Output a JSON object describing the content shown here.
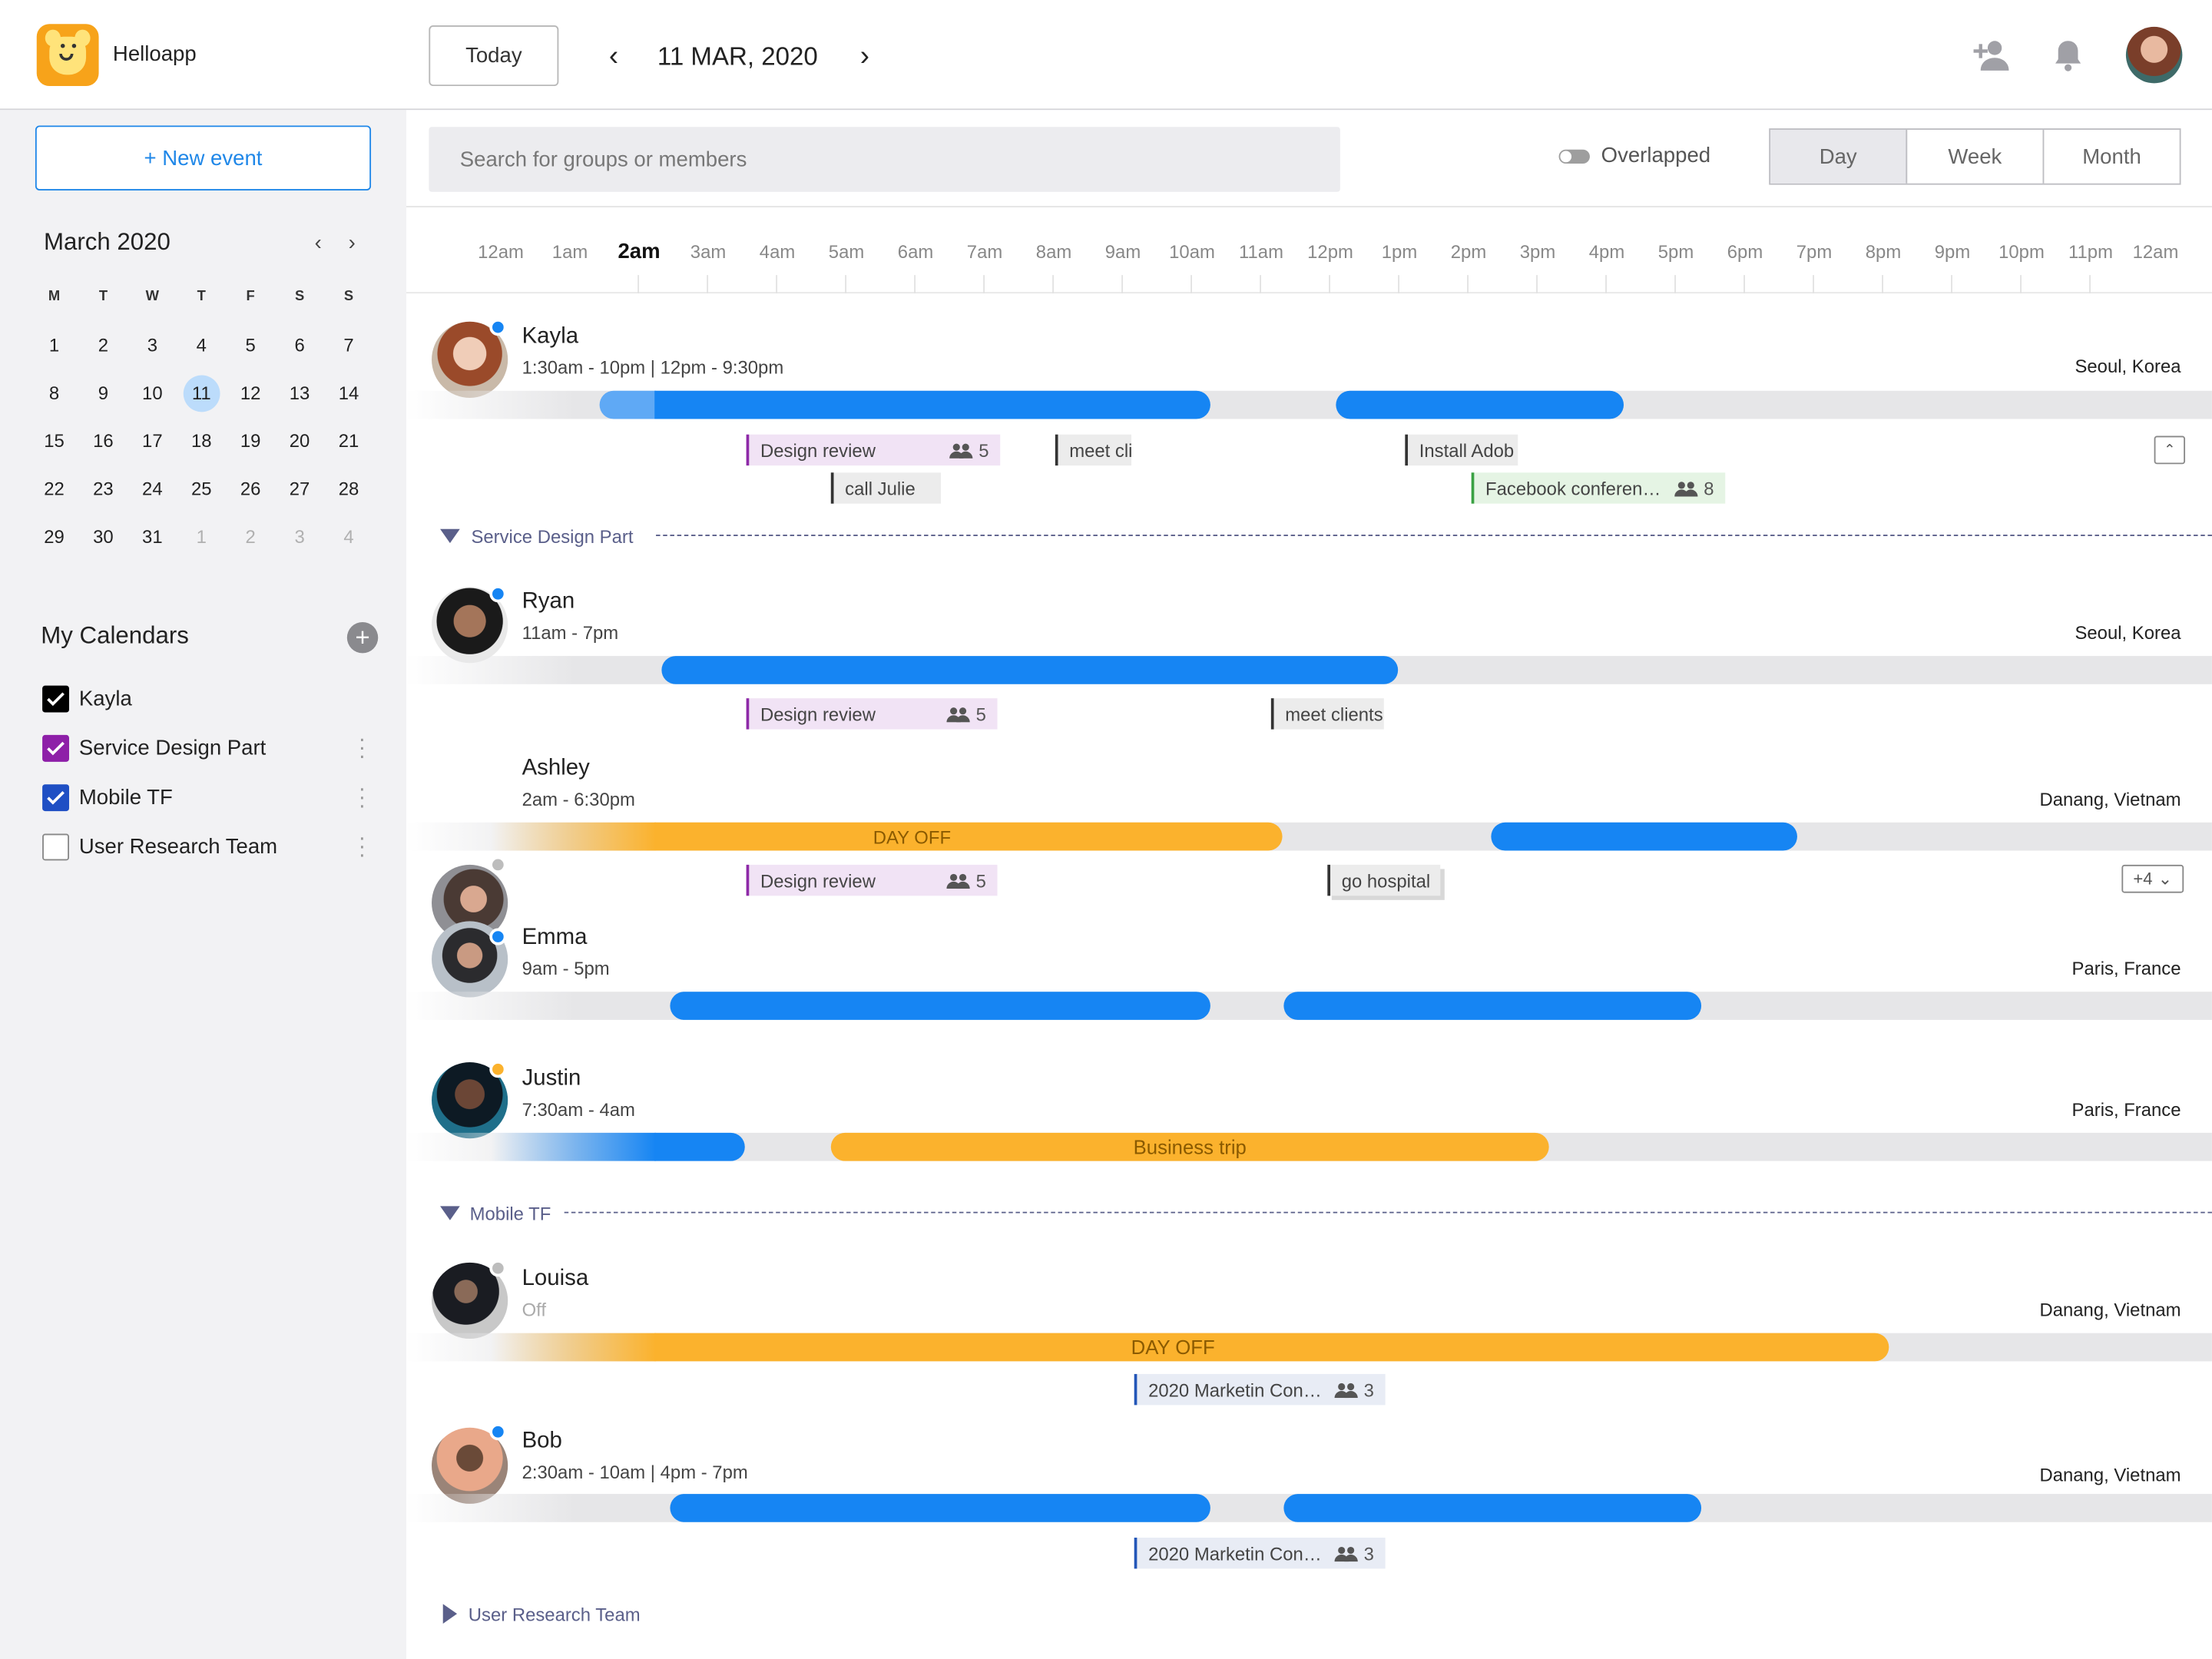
{
  "app": {
    "name": "Helloapp"
  },
  "toolbar": {
    "today_label": "Today",
    "date": "11 MAR, 2020",
    "prev": "‹",
    "next": "›"
  },
  "sidebar": {
    "new_event_label": "+ New event",
    "month_title": "March 2020",
    "weekdays": [
      "M",
      "T",
      "W",
      "T",
      "F",
      "S",
      "S"
    ],
    "weeks": [
      [
        "1",
        "2",
        "3",
        "4",
        "5",
        "6",
        "7"
      ],
      [
        "8",
        "9",
        "10",
        "11",
        "12",
        "13",
        "14"
      ],
      [
        "15",
        "16",
        "17",
        "18",
        "19",
        "20",
        "21"
      ],
      [
        "22",
        "23",
        "24",
        "25",
        "26",
        "27",
        "28"
      ],
      [
        "29",
        "30",
        "31",
        "1",
        "2",
        "3",
        "4"
      ]
    ],
    "selected_day": "11",
    "my_calendars_title": "My Calendars",
    "calendars": [
      {
        "label": "Kayla",
        "color": "#000000",
        "checked": true
      },
      {
        "label": "Service Design Part",
        "color": "#8e1fa8",
        "checked": true
      },
      {
        "label": "Mobile TF",
        "color": "#1f4fc4",
        "checked": true
      },
      {
        "label": "User Research Team",
        "color": "#888888",
        "checked": false
      }
    ]
  },
  "main": {
    "search_placeholder": "Search for groups or members",
    "overlapped_label": "Overlapped",
    "views": [
      "Day",
      "Week",
      "Month"
    ],
    "active_view": "Day",
    "hours": [
      "12am",
      "1am",
      "2am",
      "3am",
      "4am",
      "5am",
      "6am",
      "7am",
      "8am",
      "9am",
      "10am",
      "11am",
      "12pm",
      "1pm",
      "2pm",
      "3pm",
      "4pm",
      "5pm",
      "6pm",
      "7pm",
      "8pm",
      "9pm",
      "10pm",
      "11pm",
      "12am"
    ],
    "current_hour": "2am",
    "groups": [
      "Service Design Part",
      "Mobile TF",
      "User Research Team"
    ],
    "people": [
      {
        "name": "Kayla",
        "hours": "1:30am - 10pm  |  12pm - 9:30pm",
        "location": "Seoul, Korea",
        "status": "#1685f3"
      },
      {
        "name": "Ryan",
        "hours": "11am - 7pm",
        "location": "Seoul, Korea",
        "status": "#1685f3"
      },
      {
        "name": "Ashley",
        "hours": "2am - 6:30pm",
        "location": "Danang, Vietnam",
        "status": "#bdbdbd"
      },
      {
        "name": "Emma",
        "hours": "9am - 5pm",
        "location": "Paris, France",
        "status": "#1685f3"
      },
      {
        "name": "Justin",
        "hours": "7:30am - 4am",
        "location": "Paris, France",
        "status": "#fbb22d"
      },
      {
        "name": "Louisa",
        "hours": "Off",
        "location": "Danang, Vietnam",
        "status": "#bdbdbd"
      },
      {
        "name": "Bob",
        "hours": "2:30am - 10am  |  4pm - 7pm",
        "location": "Danang, Vietnam",
        "status": "#1685f3"
      }
    ],
    "events": {
      "design_review": "Design review",
      "design_review_count": "5",
      "meet_cli": "meet cli",
      "install_adob": "Install Adob",
      "call_julie": "call Julie",
      "facebook_conf": "Facebook conferen…",
      "facebook_count": "8",
      "meet_clients": "meet clients",
      "day_off": "DAY OFF",
      "go_hospital": "go hospital",
      "more": "+4",
      "business_trip": "Business trip",
      "marketing_conf": "2020 Marketin Con…",
      "marketing_count": "3"
    }
  }
}
